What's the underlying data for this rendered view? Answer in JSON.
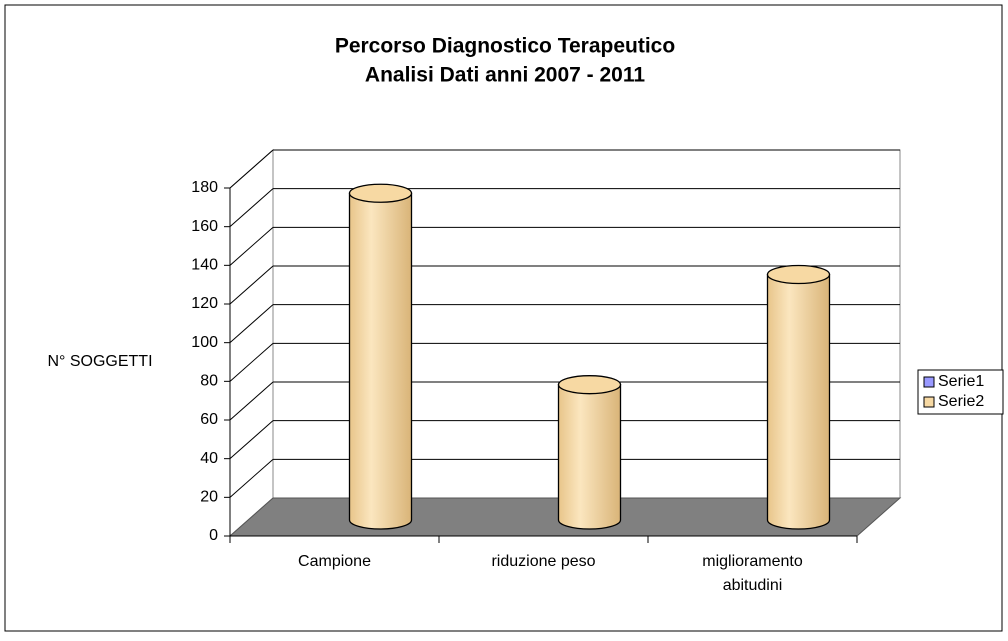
{
  "chart_data": {
    "type": "bar3d",
    "title": "Percorso Diagnostico Terapeutico",
    "subtitle": "Analisi  Dati anni 2007 - 2011",
    "ylabel": "N° SOGGETTI",
    "categories": [
      "Campione",
      "riduzione peso",
      "miglioramento abitudini"
    ],
    "series": [
      {
        "name": "Serie1",
        "color": "#9999ff",
        "values": [
          null,
          null,
          null
        ]
      },
      {
        "name": "Serie2",
        "color": "#f7d9a3",
        "values": [
          169,
          70,
          127
        ]
      }
    ],
    "ylim": [
      0,
      180
    ],
    "yticks": [
      0,
      20,
      40,
      60,
      80,
      100,
      120,
      140,
      160,
      180
    ],
    "grid": true,
    "legend": "right"
  }
}
